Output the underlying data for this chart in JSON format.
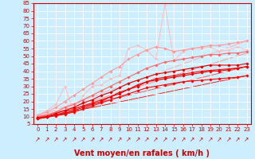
{
  "title": "",
  "xlabel": "Vent moyen/en rafales ( km/h )",
  "ylabel": "",
  "bg_color": "#cceeff",
  "grid_color": "#ffffff",
  "axis_color": "#cc0000",
  "xlim": [
    -0.5,
    23.5
  ],
  "ylim": [
    5,
    85
  ],
  "yticks": [
    5,
    10,
    15,
    20,
    25,
    30,
    35,
    40,
    45,
    50,
    55,
    60,
    65,
    70,
    75,
    80,
    85
  ],
  "xticks": [
    0,
    1,
    2,
    3,
    4,
    5,
    6,
    7,
    8,
    9,
    10,
    11,
    12,
    13,
    14,
    15,
    16,
    17,
    18,
    19,
    20,
    21,
    22,
    23
  ],
  "series": [
    {
      "x": [
        0,
        1,
        2,
        3,
        4,
        5,
        6,
        7,
        8,
        9,
        10,
        11,
        12,
        13,
        14,
        15,
        16,
        17,
        18,
        19,
        20,
        21,
        22,
        23
      ],
      "y": [
        8.5,
        9.5,
        10.5,
        11.5,
        13,
        15,
        17,
        19,
        21,
        23,
        25,
        27,
        29,
        30,
        31,
        32,
        33,
        33.5,
        34,
        34.5,
        35,
        35.5,
        36,
        37
      ],
      "color": "#ff0000",
      "lw": 0.8,
      "marker": "D",
      "ms": 1.8,
      "zorder": 5
    },
    {
      "x": [
        0,
        1,
        2,
        3,
        4,
        5,
        6,
        7,
        8,
        9,
        10,
        11,
        12,
        13,
        14,
        15,
        16,
        17,
        18,
        19,
        20,
        21,
        22,
        23
      ],
      "y": [
        8.5,
        9.5,
        11,
        13,
        15,
        17,
        19,
        21,
        23,
        26,
        28,
        31,
        33,
        35,
        36,
        37,
        38,
        39,
        40,
        40.5,
        41,
        41.5,
        42,
        43
      ],
      "color": "#ff0000",
      "lw": 0.8,
      "marker": "D",
      "ms": 1.8,
      "zorder": 5
    },
    {
      "x": [
        0,
        1,
        2,
        3,
        4,
        5,
        6,
        7,
        8,
        9,
        10,
        11,
        12,
        13,
        14,
        15,
        16,
        17,
        18,
        19,
        20,
        21,
        22,
        23
      ],
      "y": [
        9,
        10,
        11,
        12,
        14,
        16,
        18,
        20,
        23,
        25,
        28,
        30,
        33,
        34,
        35,
        36,
        37,
        38,
        39,
        40,
        40,
        41,
        42,
        43
      ],
      "color": "#dd0000",
      "lw": 0.8,
      "marker": "D",
      "ms": 1.8,
      "zorder": 4
    },
    {
      "x": [
        0,
        1,
        2,
        3,
        4,
        5,
        6,
        7,
        8,
        9,
        10,
        11,
        12,
        13,
        14,
        15,
        16,
        17,
        18,
        19,
        20,
        21,
        22,
        23
      ],
      "y": [
        9,
        10,
        12,
        14,
        16,
        19,
        21,
        24,
        26,
        29,
        32,
        34,
        36,
        38,
        39,
        40,
        41,
        42,
        43,
        44,
        44,
        44,
        44,
        45
      ],
      "color": "#dd0000",
      "lw": 0.8,
      "marker": "D",
      "ms": 1.8,
      "zorder": 4
    },
    {
      "x": [
        0,
        1,
        2,
        3,
        4,
        5,
        6,
        7,
        8,
        9,
        10,
        11,
        12,
        13,
        14,
        15,
        16,
        17,
        18,
        19,
        20,
        21,
        22,
        23
      ],
      "y": [
        10,
        11,
        13,
        16,
        18,
        21,
        24,
        27,
        30,
        33,
        36,
        39,
        42,
        44,
        46,
        47,
        48,
        49,
        50,
        51,
        51,
        52,
        52,
        53
      ],
      "color": "#ff6666",
      "lw": 0.8,
      "marker": "D",
      "ms": 1.8,
      "zorder": 3
    },
    {
      "x": [
        0,
        1,
        2,
        3,
        4,
        5,
        6,
        7,
        8,
        9,
        10,
        11,
        12,
        13,
        14,
        15,
        16,
        17,
        18,
        19,
        20,
        21,
        22,
        23
      ],
      "y": [
        11,
        13,
        16,
        20,
        24,
        28,
        32,
        36,
        40,
        43,
        48,
        51,
        54,
        56,
        55,
        53,
        54,
        55,
        56,
        57,
        57,
        58,
        59,
        60
      ],
      "color": "#ff9999",
      "lw": 0.8,
      "marker": "D",
      "ms": 1.8,
      "zorder": 3
    },
    {
      "x": [
        0,
        1,
        2,
        3,
        4,
        5,
        6,
        7,
        8,
        9,
        10,
        11,
        12,
        13,
        14,
        15,
        16,
        17,
        18,
        19,
        20,
        21,
        22,
        23
      ],
      "y": [
        10,
        14,
        18,
        30,
        12,
        24,
        30,
        31,
        35,
        37,
        55,
        57,
        54,
        48,
        84,
        47,
        53,
        55,
        55,
        56,
        53,
        54,
        56,
        54
      ],
      "color": "#ffbbbb",
      "lw": 0.7,
      "marker": "D",
      "ms": 1.5,
      "zorder": 2
    },
    {
      "x": [
        0,
        23
      ],
      "y": [
        8.5,
        37
      ],
      "color": "#ff0000",
      "lw": 0.6,
      "marker": null,
      "ms": 0,
      "zorder": 1
    },
    {
      "x": [
        0,
        23
      ],
      "y": [
        9,
        52
      ],
      "color": "#ff8888",
      "lw": 0.6,
      "marker": null,
      "ms": 0,
      "zorder": 1
    },
    {
      "x": [
        0,
        23
      ],
      "y": [
        9.5,
        43
      ],
      "color": "#ff4444",
      "lw": 0.6,
      "marker": null,
      "ms": 0,
      "zorder": 1
    },
    {
      "x": [
        0,
        23
      ],
      "y": [
        10,
        60
      ],
      "color": "#ffaaaa",
      "lw": 0.6,
      "marker": null,
      "ms": 0,
      "zorder": 1
    }
  ],
  "arrow_color": "#cc0000",
  "xlabel_color": "#cc0000",
  "xlabel_fontsize": 7,
  "tick_fontsize": 5,
  "tick_color": "#cc0000"
}
